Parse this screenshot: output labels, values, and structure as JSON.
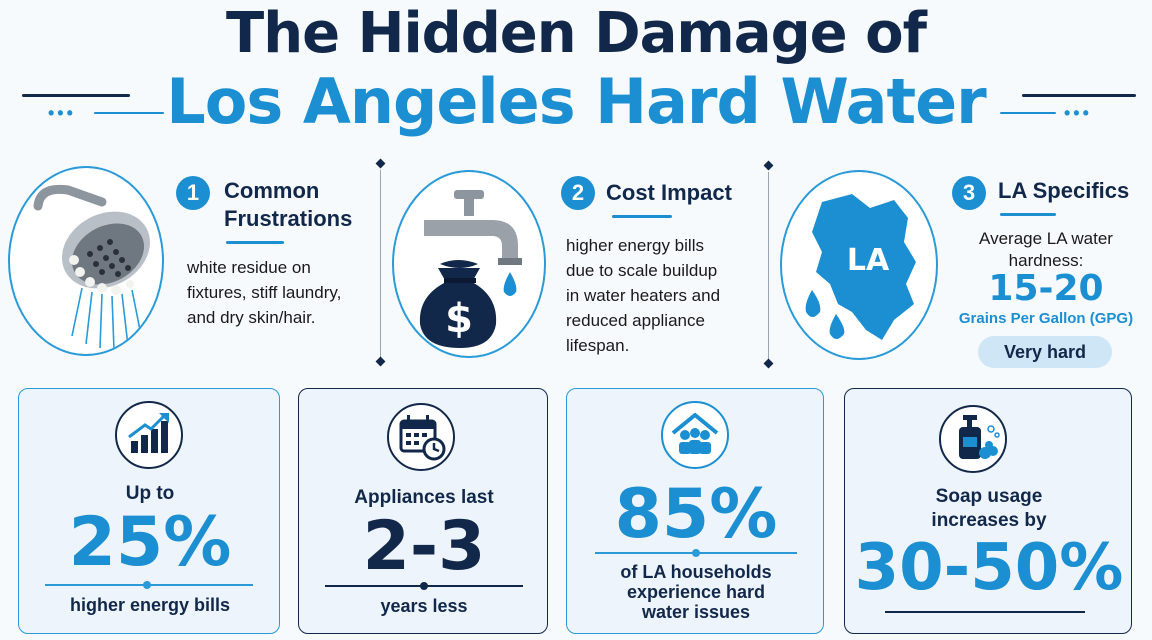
{
  "title": {
    "line1": "The Hidden Damage of",
    "line2": "Los Angeles Hard Water"
  },
  "sections": [
    {
      "number": "1",
      "title_line1": "Common",
      "title_line2": "Frustrations",
      "text": [
        "white residue on",
        "fixtures, stiff laundry,",
        "and dry skin/hair."
      ],
      "icon": "shower-head-icon"
    },
    {
      "number": "2",
      "title": "Cost Impact",
      "text": [
        "higher energy bills",
        "due to scale buildup",
        "in water heaters and",
        "reduced appliance",
        "lifespan."
      ],
      "icon": "faucet-money-bag-icon",
      "bag_symbol": "$"
    },
    {
      "number": "3",
      "title": "LA Specifics",
      "map_label": "LA",
      "hardness_label_line1": "Average LA water",
      "hardness_label_line2": "hardness:",
      "hardness_range": "15-20",
      "hardness_units": "Grains Per Gallon (GPG)",
      "rating": "Very hard",
      "icon": "la-county-map-icon"
    }
  ],
  "stats": [
    {
      "icon": "bar-chart-up-icon",
      "prefix": "Up to",
      "value": "25%",
      "caption": "higher energy bills"
    },
    {
      "icon": "calendar-clock-icon",
      "prefix": "Appliances last",
      "value": "2-3",
      "caption": "years less"
    },
    {
      "icon": "households-icon",
      "value": "85%",
      "caption_lines": [
        "of LA households",
        "experience hard",
        "water issues"
      ]
    },
    {
      "icon": "soap-dispenser-icon",
      "prefix_lines": [
        "Soap usage",
        "increases by"
      ],
      "value": "30-50%"
    }
  ],
  "colors": {
    "navy": "#12284a",
    "blue": "#1b8fd2",
    "card_bg": "#eef4fb",
    "pill_bg": "#cfe6f6"
  }
}
